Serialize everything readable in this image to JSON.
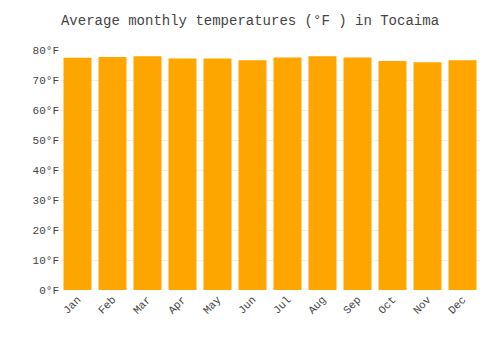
{
  "chart_data": {
    "type": "bar",
    "title": "Average monthly temperatures (°F ) in Tocaima",
    "categories": [
      "Jan",
      "Feb",
      "Mar",
      "Apr",
      "May",
      "Jun",
      "Jul",
      "Aug",
      "Sep",
      "Oct",
      "Nov",
      "Dec"
    ],
    "values": [
      77.4,
      77.7,
      77.9,
      77.2,
      77.2,
      76.6,
      77.5,
      77.9,
      77.5,
      76.3,
      75.9,
      76.6
    ],
    "color": "#FFA500",
    "ylim": [
      0,
      80
    ],
    "yticks": [
      {
        "value": 0,
        "label": "0°F"
      },
      {
        "value": 10,
        "label": "10°F"
      },
      {
        "value": 20,
        "label": "20°F"
      },
      {
        "value": 30,
        "label": "30°F"
      },
      {
        "value": 40,
        "label": "40°F"
      },
      {
        "value": 50,
        "label": "50°F"
      },
      {
        "value": 60,
        "label": "60°F"
      },
      {
        "value": 70,
        "label": "70°F"
      },
      {
        "value": 80,
        "label": "80°F"
      }
    ],
    "grid": true
  }
}
